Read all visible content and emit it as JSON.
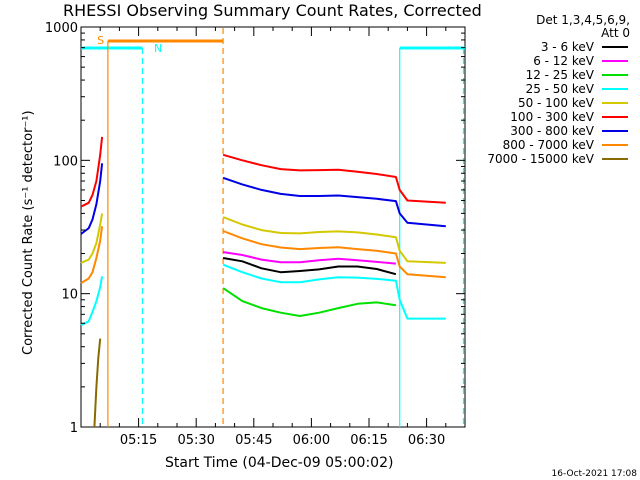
{
  "chart_data": {
    "type": "line",
    "title": "RHESSI Observing Summary Count Rates, Corrected",
    "xlabel": "Start Time (04-Dec-09 05:00:02)",
    "ylabel": "Corrected Count Rate (s⁻¹ detector⁻¹)",
    "footer": "16-Oct-2021 17:08",
    "yscale": "log",
    "ylim": [
      1,
      1000
    ],
    "xlim_minutes": [
      0,
      100
    ],
    "x_tick_labels": [
      "05:15",
      "05:30",
      "05:45",
      "06:00",
      "06:15",
      "06:30"
    ],
    "x_tick_minutes": [
      15,
      30,
      45,
      60,
      75,
      90
    ],
    "y_tick_labels": [
      "1",
      "10",
      "100",
      "1000"
    ],
    "y_tick_values": [
      1,
      10,
      100,
      1000
    ],
    "legend": {
      "header_line1": "Det 1,3,4,5,6,9,",
      "header_line2": "Att 0",
      "placement": "outside-right"
    },
    "series": [
      {
        "name": "3 - 6 keV",
        "color": "#000000",
        "segments": [
          [
            [
              37,
              18.5
            ],
            [
              42,
              17.5
            ],
            [
              47,
              15.5
            ],
            [
              52,
              14.5
            ],
            [
              57,
              14.8
            ],
            [
              62,
              15.2
            ],
            [
              67,
              16
            ],
            [
              72,
              16
            ],
            [
              77,
              15.3
            ],
            [
              82,
              14
            ]
          ]
        ]
      },
      {
        "name": "6 - 12 keV",
        "color": "#ff00ff",
        "segments": [
          [
            [
              37,
              20.5
            ],
            [
              42,
              19.5
            ],
            [
              47,
              18
            ],
            [
              52,
              17.2
            ],
            [
              57,
              17.2
            ],
            [
              62,
              17.8
            ],
            [
              67,
              18.3
            ],
            [
              72,
              17.8
            ],
            [
              77,
              17.3
            ],
            [
              82,
              16.8
            ]
          ]
        ]
      },
      {
        "name": "12 - 25 keV",
        "color": "#00e000",
        "segments": [
          [
            [
              37,
              11
            ],
            [
              42,
              8.8
            ],
            [
              47,
              7.8
            ],
            [
              52,
              7.2
            ],
            [
              57,
              6.8
            ],
            [
              62,
              7.2
            ],
            [
              67,
              7.8
            ],
            [
              72,
              8.4
            ],
            [
              77,
              8.6
            ],
            [
              82,
              8.2
            ]
          ]
        ]
      },
      {
        "name": "25 - 50 keV",
        "color": "#00ffff",
        "segments": [
          [
            [
              0,
              5.8
            ],
            [
              2,
              6.2
            ],
            [
              3,
              7.3
            ],
            [
              4,
              8.8
            ],
            [
              5,
              11.2
            ],
            [
              5.5,
              13.5
            ]
          ],
          [
            [
              37,
              16.5
            ],
            [
              42,
              14.5
            ],
            [
              47,
              13
            ],
            [
              52,
              12.2
            ],
            [
              57,
              12.2
            ],
            [
              62,
              12.8
            ],
            [
              67,
              13.3
            ],
            [
              72,
              13.2
            ],
            [
              77,
              12.9
            ],
            [
              82,
              12.5
            ],
            [
              83,
              9
            ],
            [
              85,
              6.5
            ],
            [
              95,
              6.5
            ]
          ]
        ]
      },
      {
        "name": "50 - 100 keV",
        "color": "#d4c800",
        "segments": [
          [
            [
              0,
              17
            ],
            [
              2,
              18
            ],
            [
              3,
              20
            ],
            [
              4,
              24
            ],
            [
              5,
              33
            ],
            [
              5.5,
              40
            ]
          ],
          [
            [
              37,
              37.5
            ],
            [
              42,
              33
            ],
            [
              47,
              30
            ],
            [
              52,
              28.5
            ],
            [
              57,
              28.3
            ],
            [
              62,
              29
            ],
            [
              67,
              29.3
            ],
            [
              72,
              28.8
            ],
            [
              77,
              27.8
            ],
            [
              82,
              26.5
            ],
            [
              83,
              21
            ],
            [
              85,
              17.5
            ],
            [
              95,
              17
            ]
          ]
        ]
      },
      {
        "name": "100 - 300 keV",
        "color": "#ff0000",
        "segments": [
          [
            [
              0,
              45
            ],
            [
              2,
              48
            ],
            [
              3,
              55
            ],
            [
              4,
              70
            ],
            [
              5,
              110
            ],
            [
              5.5,
              150
            ]
          ],
          [
            [
              37,
              110
            ],
            [
              42,
              100
            ],
            [
              47,
              92
            ],
            [
              52,
              86
            ],
            [
              57,
              84
            ],
            [
              62,
              84.5
            ],
            [
              67,
              85
            ],
            [
              72,
              82
            ],
            [
              77,
              79
            ],
            [
              82,
              75
            ],
            [
              83,
              60
            ],
            [
              85,
              50
            ],
            [
              95,
              48
            ]
          ]
        ]
      },
      {
        "name": "300 - 800 keV",
        "color": "#0000e6",
        "segments": [
          [
            [
              0,
              28
            ],
            [
              2,
              31
            ],
            [
              3,
              36
            ],
            [
              4,
              47
            ],
            [
              5,
              70
            ],
            [
              5.5,
              95
            ]
          ],
          [
            [
              37,
              74
            ],
            [
              42,
              66
            ],
            [
              47,
              60
            ],
            [
              52,
              56
            ],
            [
              57,
              54
            ],
            [
              62,
              54
            ],
            [
              67,
              54.5
            ],
            [
              72,
              53
            ],
            [
              77,
              51.5
            ],
            [
              82,
              49.5
            ],
            [
              83,
              40
            ],
            [
              85,
              34
            ],
            [
              95,
              32
            ]
          ]
        ]
      },
      {
        "name": "800 - 7000 keV",
        "color": "#ff8800",
        "segments": [
          [
            [
              0,
              12
            ],
            [
              2,
              13
            ],
            [
              3,
              14.5
            ],
            [
              4,
              18.5
            ],
            [
              5,
              25
            ],
            [
              5.5,
              32
            ]
          ],
          [
            [
              37,
              29.5
            ],
            [
              42,
              26
            ],
            [
              47,
              23.5
            ],
            [
              52,
              22.2
            ],
            [
              57,
              21.6
            ],
            [
              62,
              22
            ],
            [
              67,
              22.3
            ],
            [
              72,
              21.6
            ],
            [
              77,
              21
            ],
            [
              82,
              20
            ],
            [
              83,
              16
            ],
            [
              85,
              14
            ],
            [
              95,
              13.3
            ]
          ]
        ]
      },
      {
        "name": "7000 - 15000 keV",
        "color": "#8a6a00",
        "segments": [
          [
            [
              3.5,
              1
            ],
            [
              4,
              2
            ],
            [
              4.5,
              3.3
            ],
            [
              5,
              4.6
            ]
          ]
        ]
      }
    ],
    "annotations": {
      "flag_S_label": "S",
      "flag_N_label": "N",
      "flag_S_color": "#ff8800",
      "flag_N_color": "#00ffff"
    }
  }
}
